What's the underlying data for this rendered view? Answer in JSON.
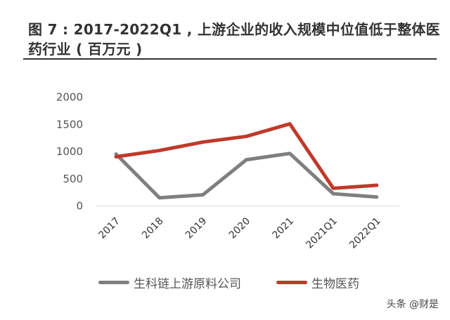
{
  "chart_data": {
    "type": "line",
    "title": "图 7 : 2017-2022Q1 , 上游企业的收入规模中位值低于整体医药行业 ( 百万元 )",
    "categories": [
      "2017",
      "2018",
      "2019",
      "2020",
      "2021",
      "2021Q1",
      "2022Q1"
    ],
    "yticks": [
      "0",
      "500",
      "1000",
      "1500",
      "2000"
    ],
    "ylim": [
      0,
      2000
    ],
    "grid": false,
    "legend_position": "bottom",
    "series": [
      {
        "name": "生科链上游原料公司",
        "color": "#7f7f7f",
        "values": [
          955,
          150,
          205,
          850,
          965,
          225,
          165
        ]
      },
      {
        "name": "生物医药",
        "color": "#c0392b",
        "values": [
          905,
          1020,
          1175,
          1280,
          1510,
          325,
          380
        ]
      }
    ]
  },
  "watermark": "头条 @财是"
}
